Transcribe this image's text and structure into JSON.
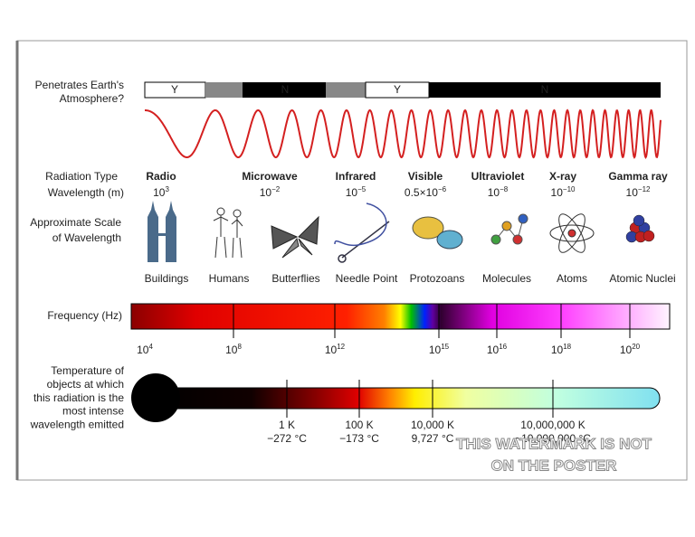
{
  "atmosphere": {
    "label": [
      "Penetrates Earth's",
      "Atmosphere?"
    ],
    "segments": [
      "Y",
      "N",
      "Y",
      "N"
    ]
  },
  "radiation": {
    "type_label": "Radiation Type",
    "wavelength_label": "Wavelength (m)",
    "types": [
      {
        "name": "Radio",
        "wavelength": {
          "base": "10",
          "exp": "3"
        }
      },
      {
        "name": "Microwave",
        "wavelength": {
          "base": "10",
          "exp": "−2"
        }
      },
      {
        "name": "Infrared",
        "wavelength": {
          "base": "10",
          "exp": "−5"
        }
      },
      {
        "name": "Visible",
        "wavelength": {
          "base": "0.5×10",
          "exp": "−6"
        }
      },
      {
        "name": "Ultraviolet",
        "wavelength": {
          "base": "10",
          "exp": "−8"
        }
      },
      {
        "name": "X-ray",
        "wavelength": {
          "base": "10",
          "exp": "−10"
        }
      },
      {
        "name": "Gamma ray",
        "wavelength": {
          "base": "10",
          "exp": "−12"
        }
      }
    ]
  },
  "scale": {
    "label": [
      "Approximate Scale",
      "of Wavelength"
    ],
    "items": [
      "Buildings",
      "Humans",
      "Butterflies",
      "Needle Point",
      "Protozoans",
      "Molecules",
      "Atoms",
      "Atomic Nuclei"
    ]
  },
  "frequency": {
    "label": "Frequency (Hz)",
    "ticks": [
      {
        "base": "10",
        "exp": "4"
      },
      {
        "base": "10",
        "exp": "8"
      },
      {
        "base": "10",
        "exp": "12"
      },
      {
        "base": "10",
        "exp": "15"
      },
      {
        "base": "10",
        "exp": "16"
      },
      {
        "base": "10",
        "exp": "18"
      },
      {
        "base": "10",
        "exp": "20"
      }
    ]
  },
  "temperature": {
    "label": [
      "Temperature of",
      "objects at which",
      "this radiation is the",
      "most intense",
      "wavelength emitted"
    ],
    "marks": [
      {
        "kelvin": "1 K",
        "celsius": "−272 °C"
      },
      {
        "kelvin": "100 K",
        "celsius": "−173 °C"
      },
      {
        "kelvin": "10,000 K",
        "celsius": "9,727 °C"
      },
      {
        "kelvin": "10,000,000 K",
        "celsius": "~10,000,000 °C"
      }
    ]
  },
  "watermark": [
    "THIS WATERMARK IS NOT",
    "ON THE POSTER"
  ]
}
